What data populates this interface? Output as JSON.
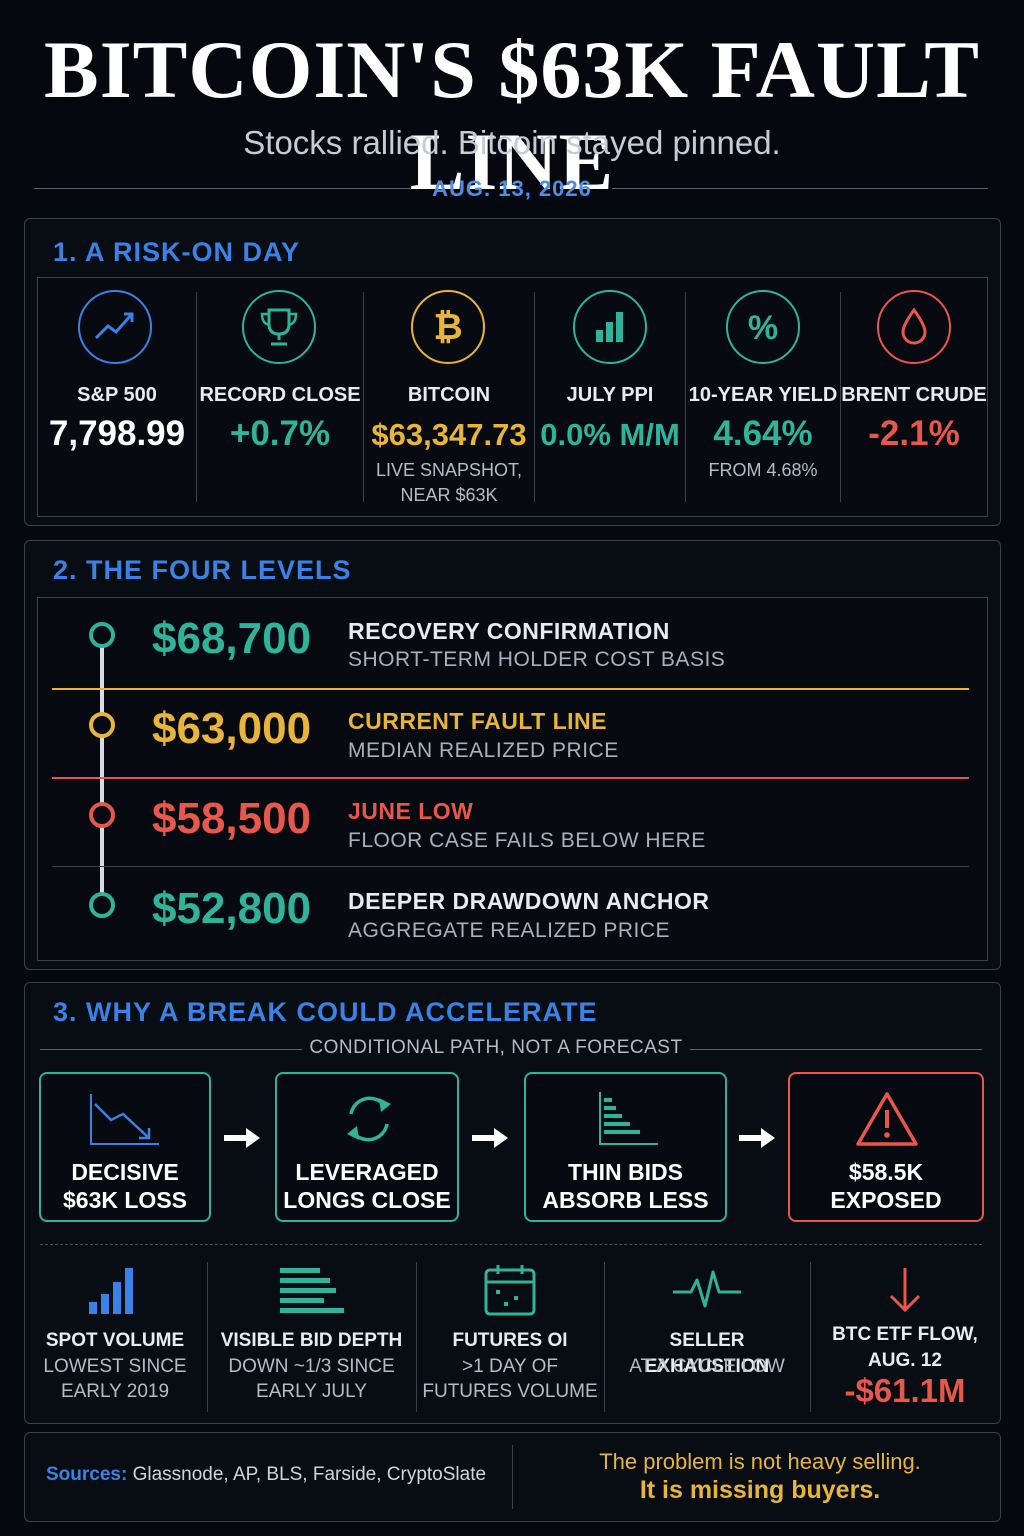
{
  "header": {
    "title": "BITCOIN'S $63K FAULT LINE",
    "subtitle": "Stocks rallied. Bitcoin stayed pinned.",
    "date": "AUG. 13, 2026"
  },
  "section1": {
    "title": "1. A RISK-ON DAY",
    "metrics": [
      {
        "icon": "trending-up-icon",
        "label": "S&P 500",
        "value": "7,798.99",
        "note": ""
      },
      {
        "icon": "trophy-icon",
        "label": "RECORD CLOSE",
        "value": "+0.7%",
        "note": ""
      },
      {
        "icon": "bitcoin-icon",
        "label": "BITCOIN",
        "value": "$63,347.73",
        "note": "LIVE SNAPSHOT,",
        "note2": "NEAR $63K"
      },
      {
        "icon": "bar-chart-icon",
        "label": "JULY PPI",
        "value": "0.0% M/M",
        "note": ""
      },
      {
        "icon": "percent-icon",
        "label": "10-YEAR YIELD",
        "value": "4.64%",
        "note": "FROM 4.68%"
      },
      {
        "icon": "oil-drop-icon",
        "label": "BRENT CRUDE",
        "value": "-2.1%",
        "note": ""
      }
    ]
  },
  "section2": {
    "title": "2. THE FOUR LEVELS",
    "levels": [
      {
        "price": "$68,700",
        "title": "RECOVERY CONFIRMATION",
        "sub": "SHORT-TERM HOLDER COST BASIS"
      },
      {
        "price": "$63,000",
        "title": "CURRENT FAULT LINE",
        "sub": "MEDIAN REALIZED PRICE"
      },
      {
        "price": "$58,500",
        "title": "JUNE LOW",
        "sub": "FLOOR CASE FAILS BELOW HERE"
      },
      {
        "price": "$52,800",
        "title": "DEEPER DRAWDOWN ANCHOR",
        "sub": "AGGREGATE REALIZED PRICE"
      }
    ]
  },
  "section3": {
    "title": "3. WHY A BREAK COULD ACCELERATE",
    "caption": "CONDITIONAL PATH, NOT A FORECAST",
    "flow": [
      {
        "icon": "trending-down-icon",
        "line1": "DECISIVE",
        "line2": "$63K LOSS"
      },
      {
        "icon": "refresh-icon",
        "line1": "LEVERAGED",
        "line2": "LONGS CLOSE"
      },
      {
        "icon": "order-book-icon",
        "line1": "THIN BIDS",
        "line2": "ABSORB LESS"
      },
      {
        "icon": "warning-icon",
        "line1": "$58.5K",
        "line2": "EXPOSED"
      }
    ],
    "stats": [
      {
        "icon": "volume-bars-icon",
        "label": "SPOT VOLUME",
        "note1": "LOWEST SINCE",
        "note2": "EARLY 2019"
      },
      {
        "icon": "bid-depth-icon",
        "label": "VISIBLE BID DEPTH",
        "note1": "DOWN ~1/3 SINCE",
        "note2": "EARLY JULY"
      },
      {
        "icon": "calendar-icon",
        "label": "FUTURES OI",
        "note1": ">1 DAY OF",
        "note2": "FUTURES VOLUME"
      },
      {
        "icon": "pulse-icon",
        "label": "SELLER EXHAUSTION",
        "note1": "AT A CYCLE LOW",
        "note2": ""
      },
      {
        "icon": "arrow-down-icon",
        "label": "BTC ETF FLOW,",
        "label2": "AUG. 12",
        "value": "-$61.1M"
      }
    ]
  },
  "footer": {
    "sources_label": "Sources:",
    "sources": "Glassnode, AP, BLS, Farside, CryptoSlate",
    "quote1": "The problem is not heavy selling.",
    "quote2": "It is missing buyers."
  },
  "colors": {
    "blue": "#3b82e6",
    "teal": "#2fb39a",
    "gold": "#e8b53a",
    "red": "#e8574a"
  }
}
